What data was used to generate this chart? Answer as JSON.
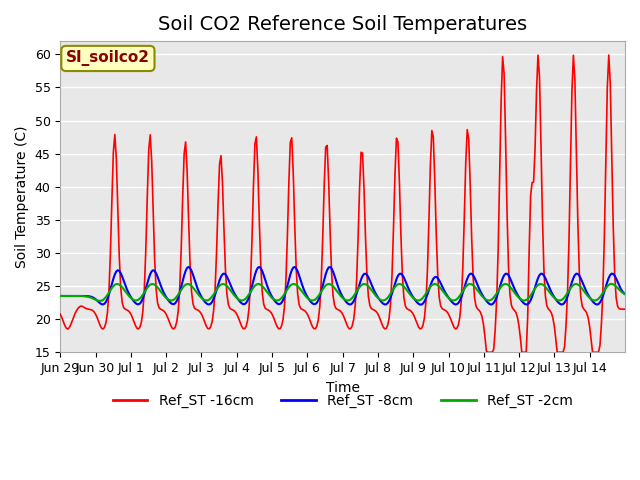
{
  "title": "Soil CO2 Reference Soil Temperatures",
  "xlabel": "Time",
  "ylabel": "Soil Temperature (C)",
  "ylim": [
    15,
    62
  ],
  "yticks": [
    15,
    20,
    25,
    30,
    35,
    40,
    45,
    50,
    55,
    60
  ],
  "annotation_text": "SI_soilco2",
  "annotation_color": "#8B0000",
  "annotation_bg": "#FFFFC0",
  "annotation_border": "#8B8B00",
  "line_colors": {
    "ST_16cm": "#FF0000",
    "ST_8cm": "#0000FF",
    "ST_2cm": "#00AA00"
  },
  "legend_labels": [
    "Ref_ST -16cm",
    "Ref_ST -8cm",
    "Ref_ST -2cm"
  ],
  "x_tick_labels": [
    "Jun 29",
    "Jun 30",
    "Jul 1",
    "Jul 2",
    "Jul 3",
    "Jul 4",
    "Jul 5",
    "Jul 6",
    "Jul 7",
    "Jul 8",
    "Jul 9",
    "Jul 10",
    "Jul 11",
    "Jul 12",
    "Jul 13",
    "Jul 14"
  ],
  "background_color": "#ffffff",
  "plot_bg_color": "#E8E8E8",
  "grid_color": "#ffffff",
  "title_fontsize": 14,
  "axis_fontsize": 10,
  "tick_fontsize": 9,
  "legend_fontsize": 10
}
